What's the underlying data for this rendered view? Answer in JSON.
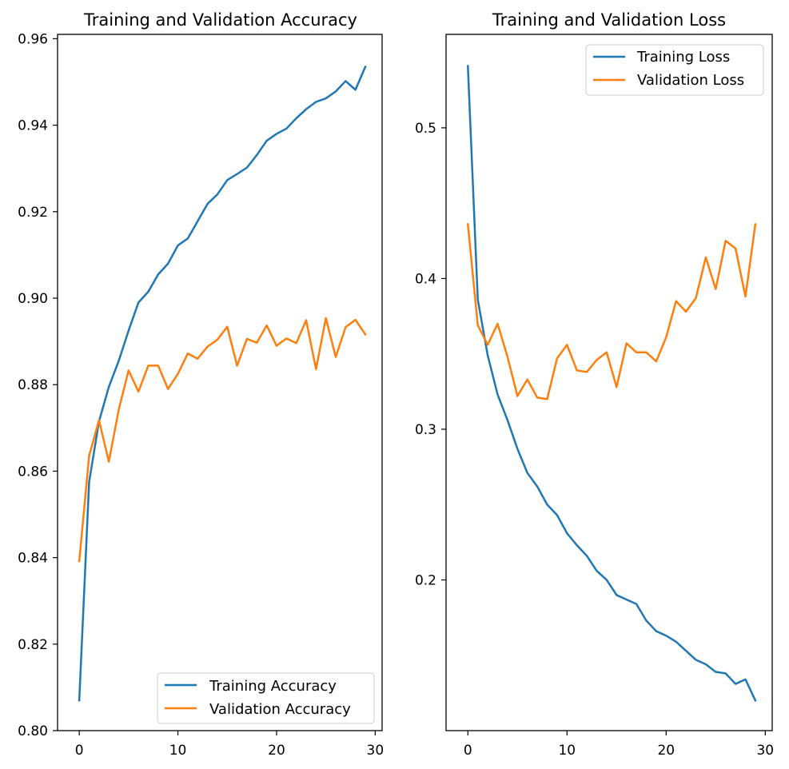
{
  "colors": {
    "series_0": "#1f77b4",
    "series_1": "#ff7f0e",
    "axes": "#000000",
    "legend_border": "#cccccc",
    "background": "#ffffff"
  },
  "chart_data": [
    {
      "type": "line",
      "title": "Training and Validation Accuracy",
      "xlabel": "",
      "ylabel": "",
      "xlim": [
        -2.2,
        30.7
      ],
      "ylim": [
        0.8,
        0.961
      ],
      "xticks": [
        0,
        10,
        20,
        30
      ],
      "yticks": [
        0.8,
        0.82,
        0.84,
        0.86,
        0.88,
        0.9,
        0.92,
        0.94,
        0.96
      ],
      "ytick_labels": [
        "0.80",
        "0.82",
        "0.84",
        "0.86",
        "0.88",
        "0.90",
        "0.92",
        "0.94",
        "0.96"
      ],
      "grid": false,
      "legend_position": "lower-right",
      "x": [
        0,
        1,
        2,
        3,
        4,
        5,
        6,
        7,
        8,
        9,
        10,
        11,
        12,
        13,
        14,
        15,
        16,
        17,
        18,
        19,
        20,
        21,
        22,
        23,
        24,
        25,
        26,
        27,
        28,
        29
      ],
      "series": [
        {
          "name": "Training Accuracy",
          "color": "#1f77b4",
          "values": [
            0.807,
            0.8575,
            0.8715,
            0.8795,
            0.8855,
            0.8925,
            0.899,
            0.9015,
            0.9055,
            0.908,
            0.9122,
            0.9138,
            0.9178,
            0.9218,
            0.924,
            0.9273,
            0.9287,
            0.9302,
            0.9331,
            0.9364,
            0.938,
            0.9392,
            0.9416,
            0.9437,
            0.9454,
            0.9462,
            0.9478,
            0.9502,
            0.9482,
            0.9535
          ]
        },
        {
          "name": "Validation Accuracy",
          "color": "#ff7f0e",
          "values": [
            0.8392,
            0.8635,
            0.8718,
            0.8622,
            0.8742,
            0.8833,
            0.8784,
            0.8844,
            0.8844,
            0.879,
            0.8825,
            0.8872,
            0.886,
            0.8888,
            0.8904,
            0.8934,
            0.8844,
            0.8906,
            0.8897,
            0.8937,
            0.889,
            0.8907,
            0.8896,
            0.8949,
            0.8836,
            0.8954,
            0.8864,
            0.8933,
            0.895,
            0.8916
          ]
        }
      ]
    },
    {
      "type": "line",
      "title": "Training and Validation Loss",
      "xlabel": "",
      "ylabel": "",
      "xlim": [
        -2.2,
        30.7
      ],
      "ylim": [
        0.1,
        0.562
      ],
      "xticks": [
        0,
        10,
        20,
        30
      ],
      "yticks": [
        0.2,
        0.3,
        0.4,
        0.5
      ],
      "ytick_labels": [
        "0.2",
        "0.3",
        "0.4",
        "0.5"
      ],
      "grid": false,
      "legend_position": "upper-right",
      "x": [
        0,
        1,
        2,
        3,
        4,
        5,
        6,
        7,
        8,
        9,
        10,
        11,
        12,
        13,
        14,
        15,
        16,
        17,
        18,
        19,
        20,
        21,
        22,
        23,
        24,
        25,
        26,
        27,
        28,
        29
      ],
      "series": [
        {
          "name": "Training Loss",
          "color": "#1f77b4",
          "values": [
            0.541,
            0.386,
            0.349,
            0.323,
            0.306,
            0.287,
            0.271,
            0.262,
            0.25,
            0.243,
            0.231,
            0.223,
            0.216,
            0.206,
            0.2,
            0.19,
            0.187,
            0.184,
            0.173,
            0.166,
            0.163,
            0.159,
            0.153,
            0.147,
            0.144,
            0.139,
            0.138,
            0.131,
            0.134,
            0.12
          ]
        },
        {
          "name": "Validation Loss",
          "color": "#ff7f0e",
          "values": [
            0.436,
            0.369,
            0.356,
            0.37,
            0.348,
            0.322,
            0.333,
            0.321,
            0.32,
            0.347,
            0.356,
            0.339,
            0.338,
            0.346,
            0.351,
            0.328,
            0.357,
            0.351,
            0.351,
            0.345,
            0.361,
            0.385,
            0.378,
            0.387,
            0.414,
            0.393,
            0.425,
            0.42,
            0.388,
            0.436
          ]
        }
      ]
    }
  ]
}
